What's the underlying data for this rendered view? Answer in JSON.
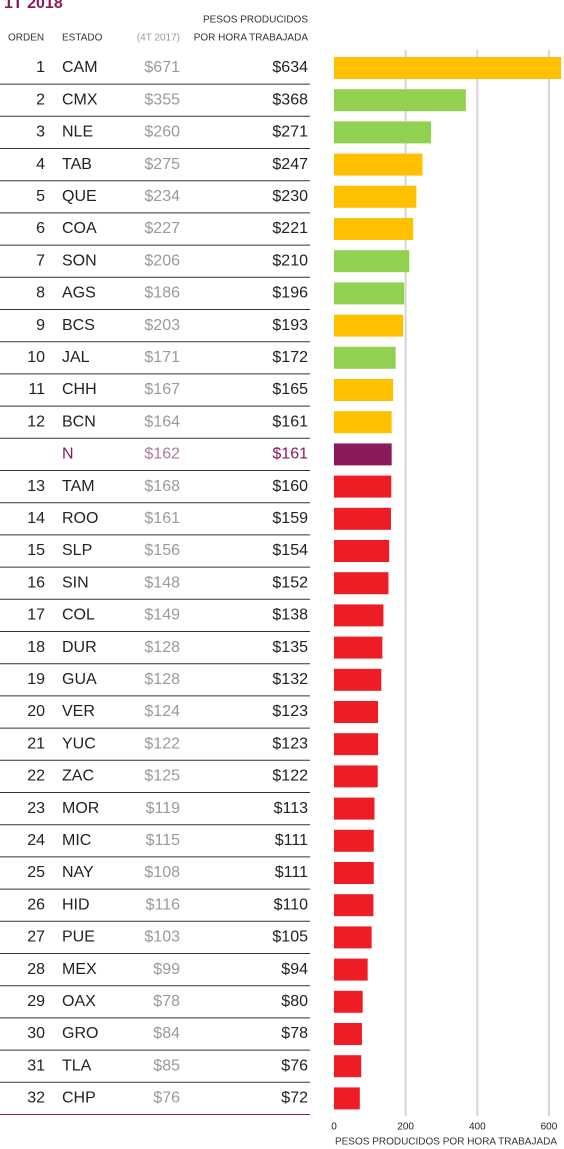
{
  "chart_data": {
    "type": "bar",
    "orientation": "horizontal",
    "title": "1T 2018",
    "column_headers": {
      "rank": "ORDEN",
      "state": "ESTADO",
      "previous": "(4T 2017)",
      "current": [
        "PESOS PRODUCIDOS",
        "POR HORA TRABAJADA"
      ]
    },
    "ranks": [
      1,
      2,
      3,
      4,
      5,
      6,
      7,
      8,
      9,
      10,
      11,
      12,
      null,
      13,
      14,
      15,
      16,
      17,
      18,
      19,
      20,
      21,
      22,
      23,
      24,
      25,
      26,
      27,
      28,
      29,
      30,
      31,
      32
    ],
    "categories": [
      "CAM",
      "CMX",
      "NLE",
      "TAB",
      "QUE",
      "COA",
      "SON",
      "AGS",
      "BCS",
      "JAL",
      "CHH",
      "BCN",
      "N",
      "TAM",
      "ROO",
      "SLP",
      "SIN",
      "COL",
      "DUR",
      "GUA",
      "VER",
      "YUC",
      "ZAC",
      "MOR",
      "MIC",
      "NAY",
      "HID",
      "PUE",
      "MEX",
      "OAX",
      "GRO",
      "TLA",
      "CHP"
    ],
    "previous": {
      "values": [
        671,
        355,
        260,
        275,
        234,
        227,
        206,
        186,
        203,
        171,
        167,
        164,
        162,
        168,
        161,
        156,
        148,
        149,
        128,
        128,
        124,
        122,
        125,
        119,
        115,
        108,
        116,
        103,
        99,
        78,
        84,
        85,
        76
      ],
      "value_labels": [
        "$671",
        "$355",
        "$260",
        "$275",
        "$234",
        "$227",
        "$206",
        "$186",
        "$203",
        "$171",
        "$167",
        "$164",
        "$162",
        "$168",
        "$161",
        "$156",
        "$148",
        "$149",
        "$128",
        "$128",
        "$124",
        "$122",
        "$125",
        "$119",
        "$115",
        "$108",
        "$116",
        "$103",
        "$99",
        "$78",
        "$84",
        "$85",
        "$76"
      ]
    },
    "values": [
      634,
      368,
      271,
      247,
      230,
      221,
      210,
      196,
      193,
      172,
      165,
      161,
      161,
      160,
      159,
      154,
      152,
      138,
      135,
      132,
      123,
      123,
      122,
      113,
      111,
      111,
      110,
      105,
      94,
      80,
      78,
      76,
      72
    ],
    "value_labels": [
      "$634",
      "$368",
      "$271",
      "$247",
      "$230",
      "$221",
      "$210",
      "$196",
      "$193",
      "$172",
      "$165",
      "$161",
      "$161",
      "$160",
      "$159",
      "$154",
      "$152",
      "$138",
      "$135",
      "$132",
      "$123",
      "$123",
      "$122",
      "$113",
      "$111",
      "$111",
      "$110",
      "$105",
      "$94",
      "$80",
      "$78",
      "$76",
      "$72"
    ],
    "colors": [
      "#ffc000",
      "#92d050",
      "#92d050",
      "#ffc000",
      "#ffc000",
      "#ffc000",
      "#92d050",
      "#92d050",
      "#ffc000",
      "#92d050",
      "#ffc000",
      "#ffc000",
      "#8b1a5a",
      "#ee1c25",
      "#ee1c25",
      "#ee1c25",
      "#ee1c25",
      "#ee1c25",
      "#ee1c25",
      "#ee1c25",
      "#ee1c25",
      "#ee1c25",
      "#ee1c25",
      "#ee1c25",
      "#ee1c25",
      "#ee1c25",
      "#ee1c25",
      "#ee1c25",
      "#ee1c25",
      "#ee1c25",
      "#ee1c25",
      "#ee1c25",
      "#ee1c25"
    ],
    "xlim": [
      0,
      642
    ],
    "xticks": [
      0,
      200,
      400,
      600
    ],
    "grid": true,
    "xlabel": "PESOS PRODUCIDOS POR HORA TRABAJADA"
  }
}
